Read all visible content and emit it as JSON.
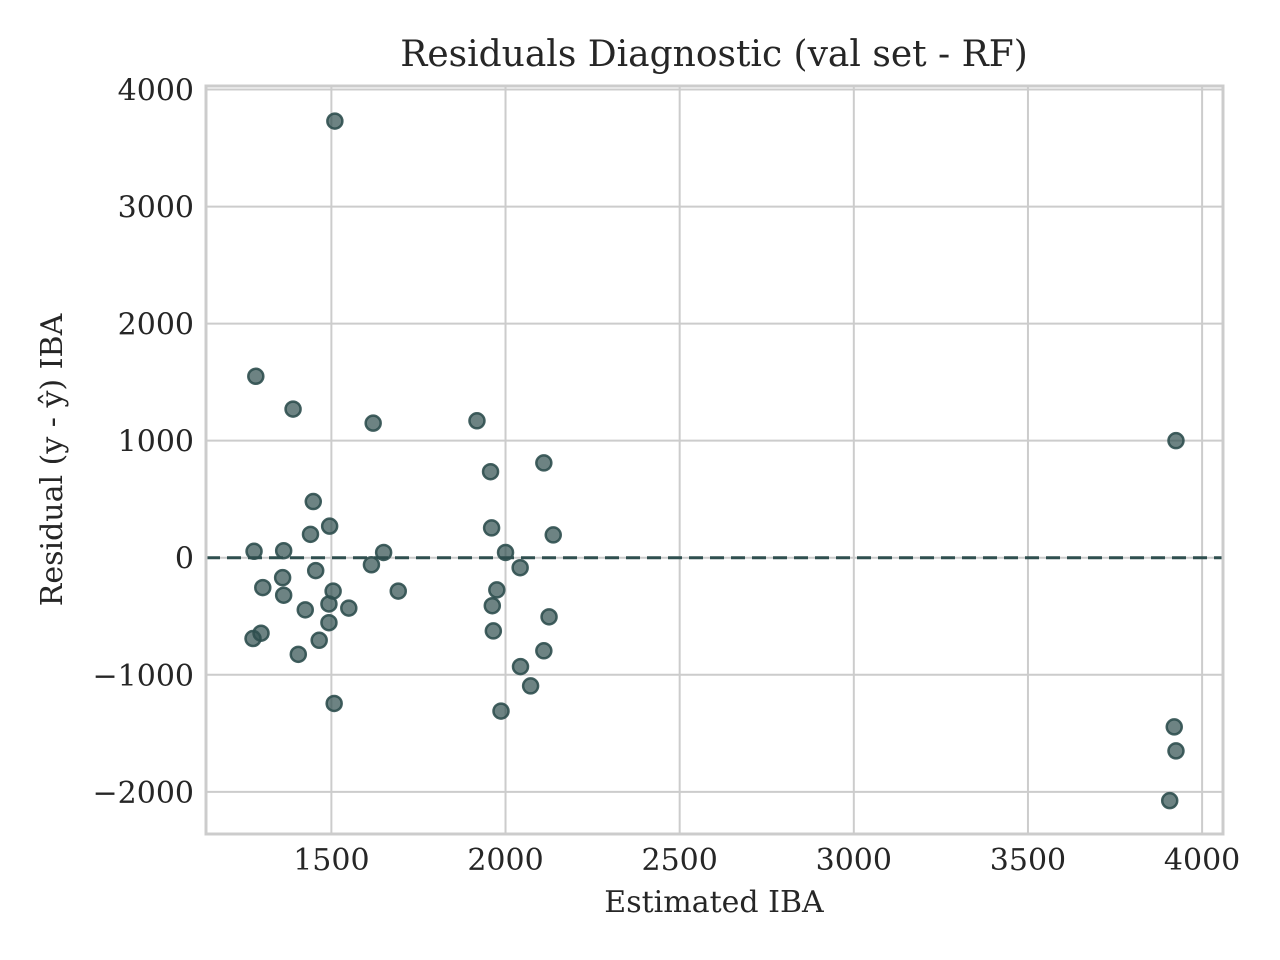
{
  "chart_data": {
    "type": "scatter",
    "title": "Residuals Diagnostic (val set - RF)",
    "xlabel": "Estimated IBA",
    "ylabel": "Residual (y - ŷ) IBA",
    "xlim": [
      1140,
      4060
    ],
    "ylim": [
      -2360,
      4030
    ],
    "x_ticks": [
      1500,
      2000,
      2500,
      3000,
      3500,
      4000
    ],
    "y_ticks": [
      -2000,
      -1000,
      0,
      1000,
      2000,
      3000,
      4000
    ],
    "x_tick_labels": [
      "1500",
      "2000",
      "2500",
      "3000",
      "3500",
      "4000"
    ],
    "y_tick_labels": [
      "−2000",
      "−1000",
      "0",
      "1000",
      "2000",
      "3000",
      "4000"
    ],
    "grid": true,
    "reference_line": {
      "y": 0,
      "style": "dashed",
      "color": "#2f4f4f"
    },
    "point_color": "#2f4f4f",
    "point_alpha": 0.7,
    "points": [
      {
        "x": 1510,
        "y": 3730
      },
      {
        "x": 1283,
        "y": 1550
      },
      {
        "x": 1390,
        "y": 1270
      },
      {
        "x": 1620,
        "y": 1150
      },
      {
        "x": 1918,
        "y": 1170
      },
      {
        "x": 1957,
        "y": 735
      },
      {
        "x": 2110,
        "y": 810
      },
      {
        "x": 3925,
        "y": 1000
      },
      {
        "x": 1448,
        "y": 480
      },
      {
        "x": 1495,
        "y": 270
      },
      {
        "x": 1440,
        "y": 200
      },
      {
        "x": 1960,
        "y": 255
      },
      {
        "x": 2137,
        "y": 195
      },
      {
        "x": 1278,
        "y": 55
      },
      {
        "x": 1363,
        "y": 60
      },
      {
        "x": 1650,
        "y": 45
      },
      {
        "x": 2000,
        "y": 45
      },
      {
        "x": 1615,
        "y": -60
      },
      {
        "x": 2042,
        "y": -85
      },
      {
        "x": 1455,
        "y": -110
      },
      {
        "x": 1360,
        "y": -170
      },
      {
        "x": 1303,
        "y": -255
      },
      {
        "x": 1505,
        "y": -285
      },
      {
        "x": 1692,
        "y": -285
      },
      {
        "x": 1975,
        "y": -275
      },
      {
        "x": 1363,
        "y": -320
      },
      {
        "x": 1493,
        "y": -395
      },
      {
        "x": 1550,
        "y": -430
      },
      {
        "x": 1425,
        "y": -445
      },
      {
        "x": 1962,
        "y": -410
      },
      {
        "x": 2125,
        "y": -505
      },
      {
        "x": 1493,
        "y": -555
      },
      {
        "x": 1965,
        "y": -625
      },
      {
        "x": 1298,
        "y": -645
      },
      {
        "x": 1275,
        "y": -690
      },
      {
        "x": 1465,
        "y": -705
      },
      {
        "x": 2110,
        "y": -795
      },
      {
        "x": 1405,
        "y": -825
      },
      {
        "x": 2043,
        "y": -930
      },
      {
        "x": 2072,
        "y": -1095
      },
      {
        "x": 1508,
        "y": -1245
      },
      {
        "x": 1987,
        "y": -1310
      },
      {
        "x": 3920,
        "y": -1445
      },
      {
        "x": 3925,
        "y": -1650
      },
      {
        "x": 3907,
        "y": -2075
      }
    ]
  }
}
